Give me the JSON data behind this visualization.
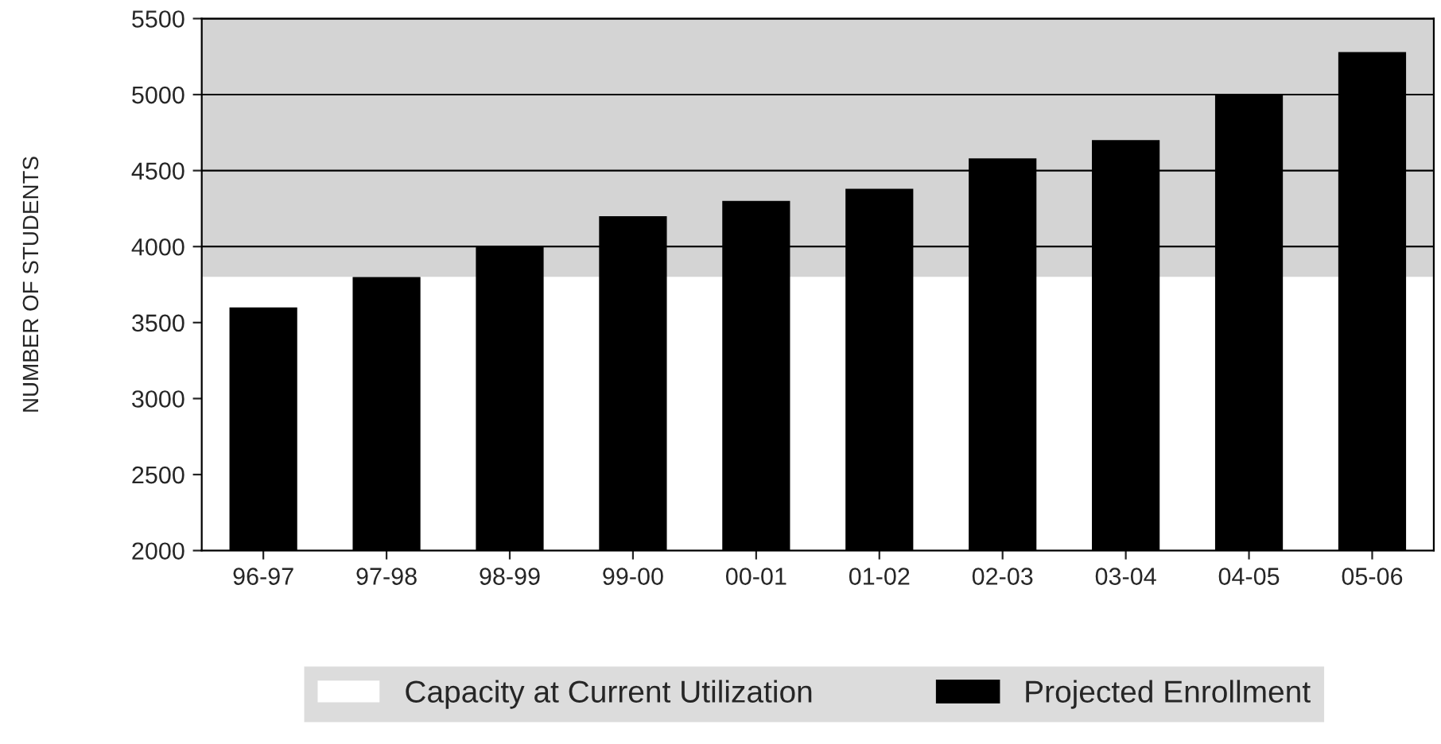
{
  "chart_data": {
    "type": "bar",
    "ylabel": "NUMBER OF STUDENTS",
    "categories": [
      "96-97",
      "97-98",
      "98-99",
      "99-00",
      "00-01",
      "01-02",
      "02-03",
      "03-04",
      "04-05",
      "05-06"
    ],
    "series": [
      {
        "name": "Projected Enrollment",
        "color": "#000000",
        "values": [
          3600,
          3800,
          4000,
          4200,
          4300,
          4380,
          4580,
          4700,
          5000,
          5280
        ]
      }
    ],
    "bands": [
      {
        "axis": "y",
        "from": 2000,
        "to": 3800,
        "color": "#ffffff",
        "label": "Capacity at Current Utilization"
      },
      {
        "axis": "y",
        "from": 3800,
        "to": 5500,
        "color": "#d4d4d4"
      }
    ],
    "ylim": [
      2000,
      5500
    ],
    "yticks": [
      2000,
      2500,
      3000,
      3500,
      4000,
      4500,
      5000,
      5500
    ],
    "grid": "y",
    "legend": "bottom"
  }
}
